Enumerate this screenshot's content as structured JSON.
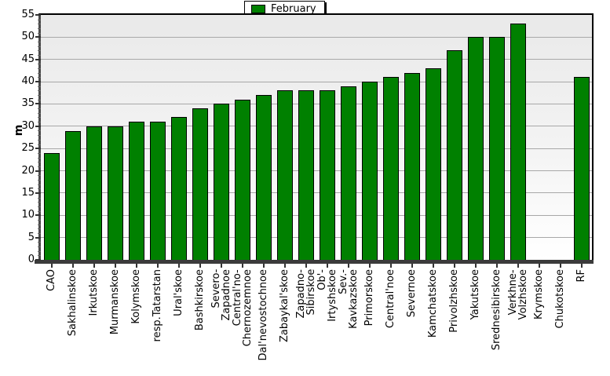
{
  "legend": {
    "label": "February",
    "swatch_color": "#008000"
  },
  "chart_data": {
    "type": "bar",
    "title": "",
    "ylabel": "m",
    "xlabel": "",
    "ylim": [
      0,
      55
    ],
    "ytick_step": 5,
    "yticks": [
      0,
      5,
      10,
      15,
      20,
      25,
      30,
      35,
      40,
      45,
      50,
      55
    ],
    "grid": true,
    "legend_position": "top-center",
    "plot_background": "gradient #e9e9e9 to #ffffff",
    "categories": [
      "CAO",
      "Sakhalinskoe",
      "Irkutskoe",
      "Murmanskoe",
      "Kolymskoe",
      "resp.Tatarstan",
      "Ural'skoe",
      "Bashkirskoe",
      "Severo-\nZapadnoe",
      "Central'no-\nChernozemnoe",
      "Dal'nevostochnoe",
      "Zabaykal'skoe",
      "Zapadno-\nSibirskoe",
      "Ob'-\nIrtyshskoe",
      "Sev.-\nKavkazskoe",
      "Primorskoe",
      "Central'noe",
      "Severnoe",
      "Kamchatskoe",
      "Privolzhskoe",
      "Yakutskoe",
      "Srednesibirskoe",
      "Verkhne-\nVolzhskoe",
      "Krymskoe",
      "Chukotskoe",
      "RF"
    ],
    "series": [
      {
        "name": "February",
        "color": "#008000",
        "values": [
          24,
          29,
          30,
          30,
          31,
          31,
          32,
          34,
          35,
          36,
          37,
          38,
          38,
          38,
          39,
          40,
          41,
          42,
          43,
          47,
          50,
          50,
          53,
          null,
          null,
          41
        ]
      }
    ]
  }
}
